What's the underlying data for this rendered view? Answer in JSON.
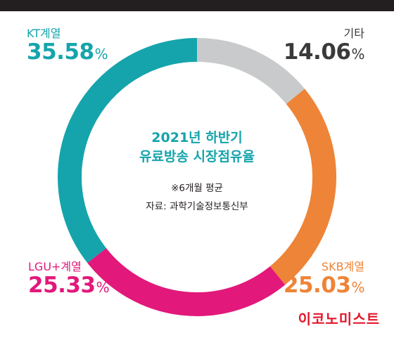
{
  "chart_data": {
    "type": "pie",
    "style": "donut",
    "title_lines": [
      "2021년 하반기",
      "유료방송 시장점유율"
    ],
    "notes": [
      "※6개월 평균",
      "자료: 과학기술정보통신부"
    ],
    "slices": [
      {
        "name": "기타",
        "value": 14.06,
        "value_text": "14.06",
        "color": "#c8cacb",
        "label_color": "#3a3a3a"
      },
      {
        "name": "SKB계열",
        "value": 25.03,
        "value_text": "25.03",
        "color": "#ee8437",
        "label_color": "#ee8437"
      },
      {
        "name": "LGU+계열",
        "value": 25.33,
        "value_text": "25.33",
        "color": "#e2187a",
        "label_color": "#e2187a"
      },
      {
        "name": "KT계열",
        "value": 35.58,
        "value_text": "35.58",
        "color": "#15a4ac",
        "label_color": "#15a4ac"
      }
    ],
    "unit": "%",
    "title_color": "#15a4ac"
  },
  "brand": {
    "text": "이코노미스트",
    "color": "#e3162a"
  }
}
